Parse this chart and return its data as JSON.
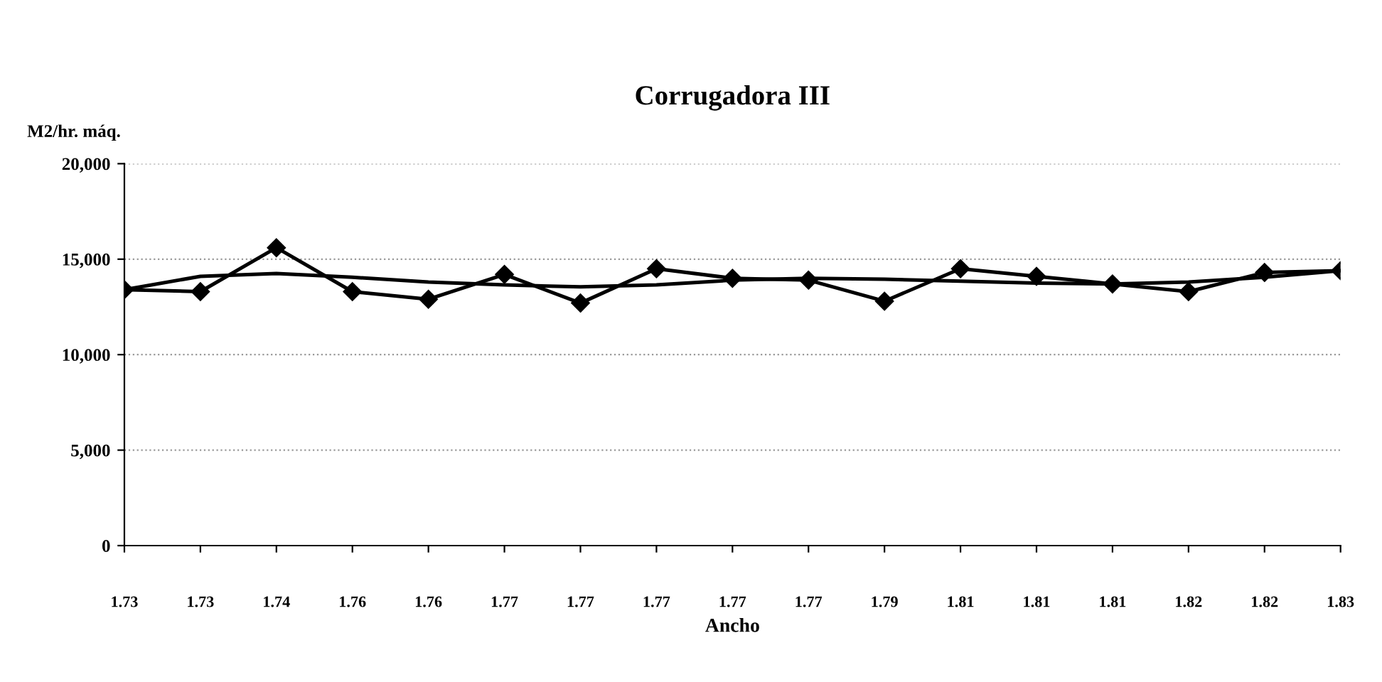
{
  "chart_data": {
    "type": "line",
    "title": "Corrugadora III",
    "xlabel": "Ancho",
    "ylabel": "M2/hr. máq.",
    "categories": [
      "1.73",
      "1.73",
      "1.74",
      "1.76",
      "1.76",
      "1.77",
      "1.77",
      "1.77",
      "1.77",
      "1.77",
      "1.79",
      "1.81",
      "1.81",
      "1.81",
      "1.82",
      "1.82",
      "1.83"
    ],
    "series": [
      {
        "color": "#000000",
        "marker": "diamond",
        "values": [
          13400,
          13300,
          15600,
          13300,
          12900,
          14200,
          12700,
          14500,
          14000,
          13900,
          12800,
          14500,
          14100,
          13700,
          13300,
          14300,
          14400
        ]
      },
      {
        "color": "#000000",
        "marker": "none",
        "values": [
          13400,
          14100,
          14250,
          14050,
          13800,
          13650,
          13550,
          13650,
          13900,
          14000,
          13950,
          13850,
          13750,
          13700,
          13800,
          14050,
          14400
        ]
      }
    ],
    "ylim": [
      0,
      20000
    ],
    "yticks": [
      {
        "value": 0,
        "label": "0"
      },
      {
        "value": 5000,
        "label": "5,000"
      },
      {
        "value": 10000,
        "label": "10,000"
      },
      {
        "value": 15000,
        "label": "15,000"
      },
      {
        "value": 20000,
        "label": "20,000"
      }
    ],
    "grid": "y",
    "legend": false
  }
}
